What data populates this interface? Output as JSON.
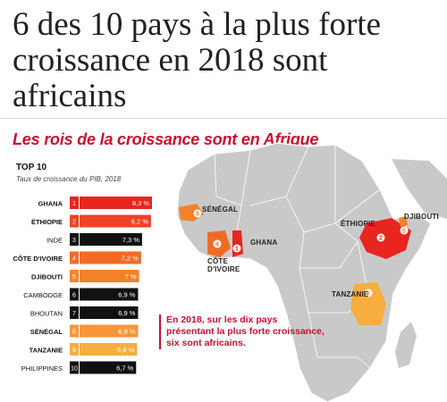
{
  "headline": "6 des 10 pays à la plus forte croissance en 2018 sont africains",
  "chart_data": {
    "type": "bar",
    "title": "Les rois de la croissance sont en Afrique",
    "subtitle_top": "TOP 10",
    "subtitle": "Taux de croissance du PIB, 2018",
    "categories": [
      "GHANA",
      "ÉTHIOPIE",
      "INDE",
      "CÔTE D'IVOIRE",
      "DJIBOUTI",
      "CAMBODGE",
      "BHOUTAN",
      "SÉNÉGAL",
      "TANZANIE",
      "PHILIPPINES"
    ],
    "ranks": [
      "1",
      "2",
      "3",
      "4",
      "5",
      "6",
      "7",
      "8",
      "9",
      "10"
    ],
    "values": [
      8.3,
      8.2,
      7.3,
      7.2,
      7.0,
      6.9,
      6.9,
      6.9,
      6.8,
      6.7
    ],
    "value_labels": [
      "8,3 %",
      "8,2 %",
      "7,3 %",
      "7,2 %",
      "7 %",
      "6,9 %",
      "6,9 %",
      "6,9 %",
      "6,8 %",
      "6,7 %"
    ],
    "african": [
      true,
      true,
      false,
      true,
      true,
      false,
      false,
      true,
      true,
      false
    ],
    "bar_colors": [
      "#e8251f",
      "#ee4324",
      "#111111",
      "#f26b25",
      "#f4822a",
      "#111111",
      "#111111",
      "#f6973a",
      "#f8ad3f",
      "#111111"
    ],
    "ylim": [
      0,
      8.3
    ]
  },
  "map": {
    "labels": {
      "senegal": "SÉNÉGAL",
      "ghana": "GHANA",
      "cote_divoire": "CÔTE D'IVOIRE",
      "ethiopie": "ÉTHIOPIE",
      "djibouti": "DJIBOUTI",
      "tanzanie": "TANZANIE"
    },
    "markers": {
      "senegal": "8",
      "cote_divoire": "4",
      "ghana": "1",
      "ethiopie": "2",
      "djibouti": "5",
      "tanzanie": "9"
    },
    "colors": {
      "land": "#c9c9c9",
      "senegal": "#f4822a",
      "ghana": "#e8251f",
      "cote_divoire": "#f26b25",
      "ethiopie": "#e8251f",
      "djibouti": "#f4822a",
      "tanzanie": "#f8ad3f"
    }
  },
  "callout": "En 2018, sur les dix pays présentant la plus forte croissance, six sont africains."
}
